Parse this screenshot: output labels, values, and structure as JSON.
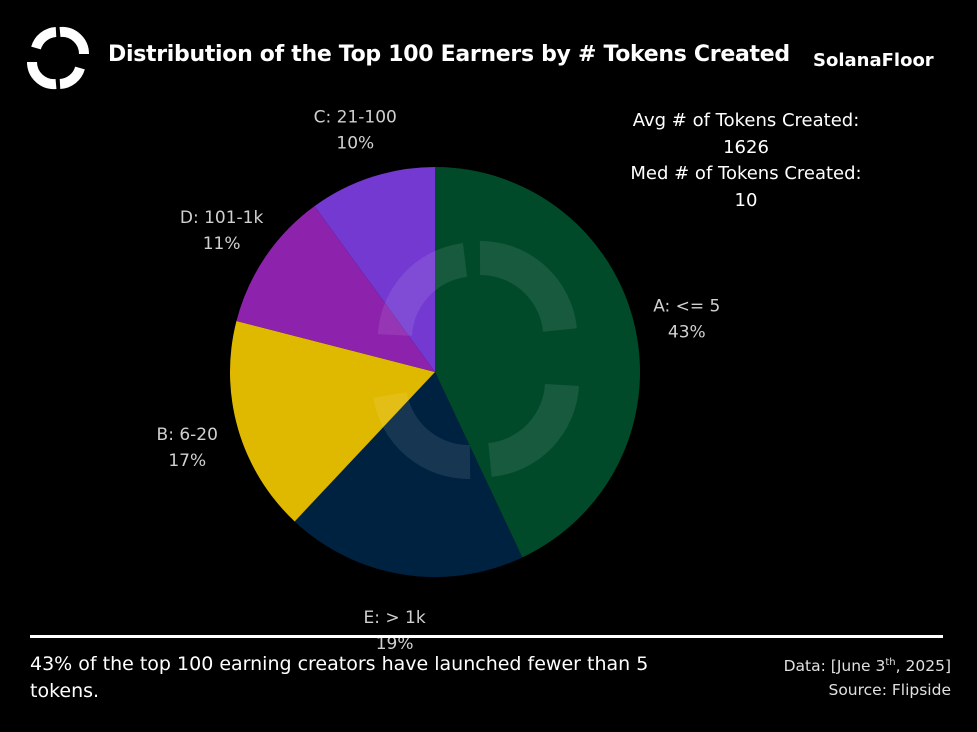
{
  "header": {
    "title": "Distribution of the Top 100 Earners by # Tokens Created",
    "brand": "SolanaFloor",
    "logo_icon": "solanafloor-logo-icon"
  },
  "stats": {
    "avg_label": "Avg # of Tokens Created:",
    "avg_value": "1626",
    "med_label": "Med # of Tokens Created:",
    "med_value": "10"
  },
  "chart_data": {
    "type": "pie",
    "title": "Distribution of the Top 100 Earners by # Tokens Created",
    "start_angle": "12 o'clock",
    "direction": "clockwise",
    "slices": [
      {
        "label": "A: <= 5",
        "value": 43,
        "value_label": "43%",
        "color": "#004a2a"
      },
      {
        "label": "E: > 1k",
        "value": 19,
        "value_label": "19%",
        "color": "#002241"
      },
      {
        "label": "B: 6-20",
        "value": 17,
        "value_label": "17%",
        "color": "#dfb800"
      },
      {
        "label": "D: 101-1k",
        "value": 11,
        "value_label": "11%",
        "color": "#8d22ad"
      },
      {
        "label": "C: 21-100",
        "value": 10,
        "value_label": "10%",
        "color": "#7339d1"
      }
    ],
    "legend": "none",
    "grid": false
  },
  "footer": {
    "caption": "43% of the top 100 earning creators have launched fewer than 5 tokens.",
    "data_prefix": "Data: [June 3",
    "data_sup": "th",
    "data_suffix": ", 2025]",
    "source": "Source: Flipside"
  }
}
